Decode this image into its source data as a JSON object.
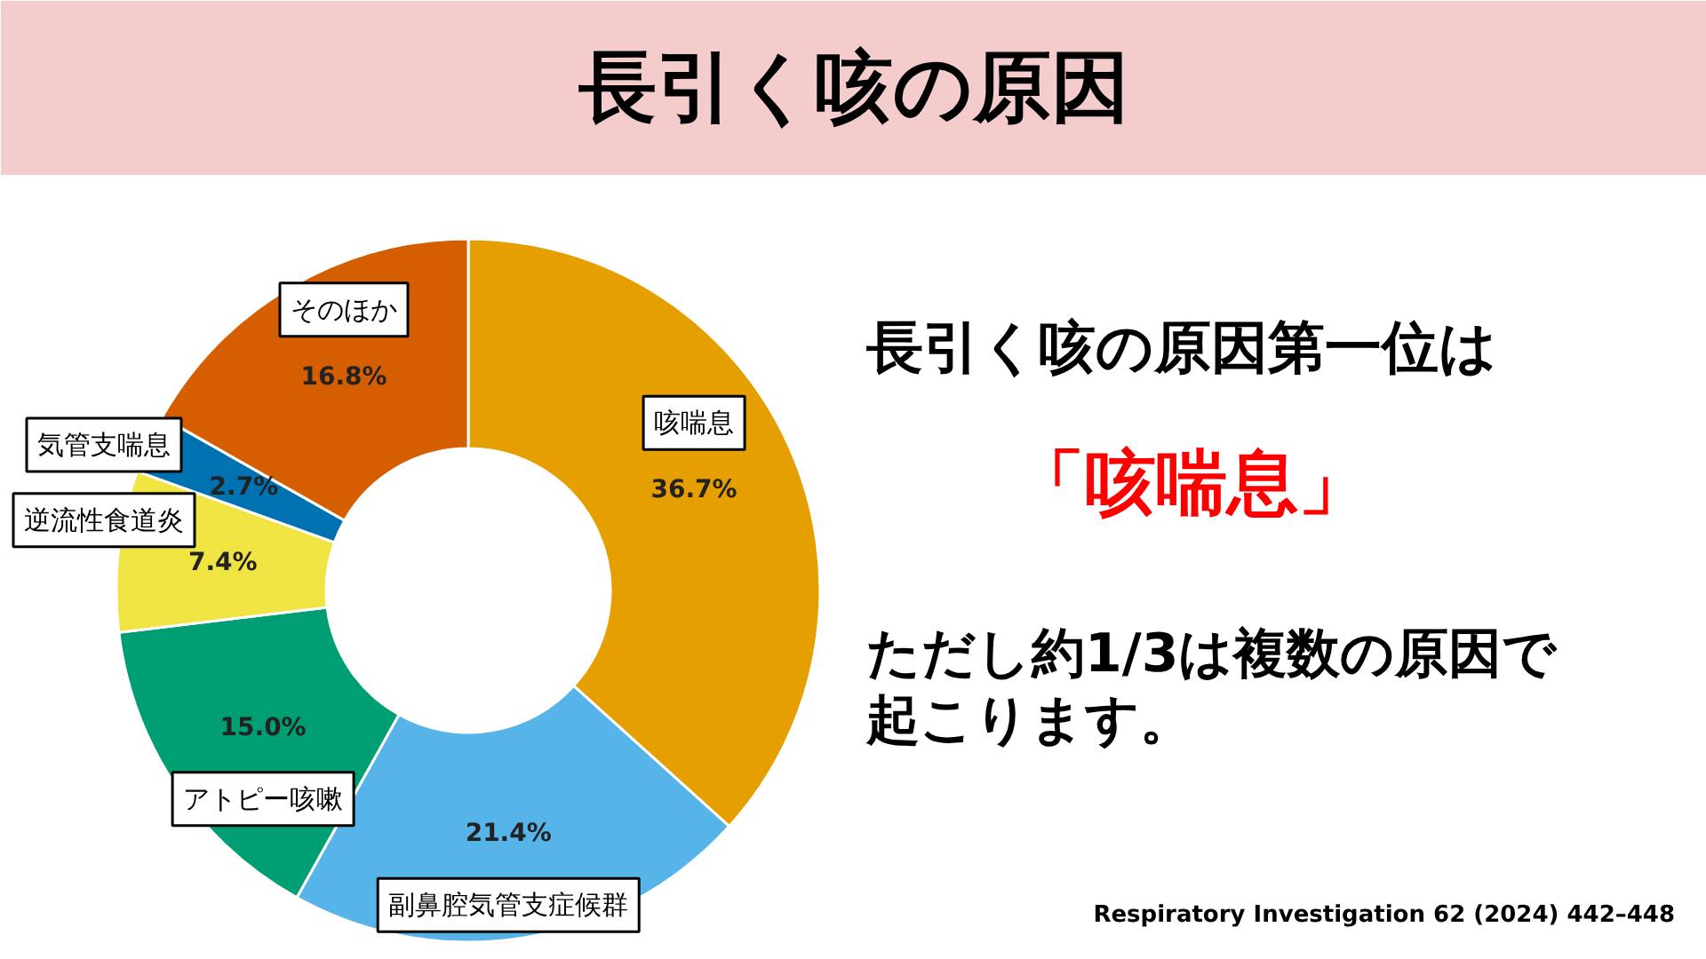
{
  "chart_data": {
    "type": "donut",
    "title": "長引く咳の原因",
    "categories": [
      "咳喘息",
      "副鼻腔気管支症候群",
      "アトピー咳嗽",
      "逆流性食道炎",
      "気管支喘息",
      "そのほか"
    ],
    "values": [
      36.7,
      21.4,
      15.0,
      7.4,
      2.7,
      16.8
    ],
    "colors": [
      "#e69f00",
      "#56b4e9",
      "#009e73",
      "#f0e442",
      "#0072b2",
      "#d55e00"
    ],
    "value_labels": [
      "36.7%",
      "21.4%",
      "15.0%",
      "7.4%",
      "2.7%",
      "16.8%"
    ],
    "annotations": [
      "長引く咳の原因第一位は",
      "「咳喘息」",
      "ただし約1/3は複数の原因で起こります。",
      "Respiratory Investigation 62 (2024) 442–448"
    ]
  }
}
